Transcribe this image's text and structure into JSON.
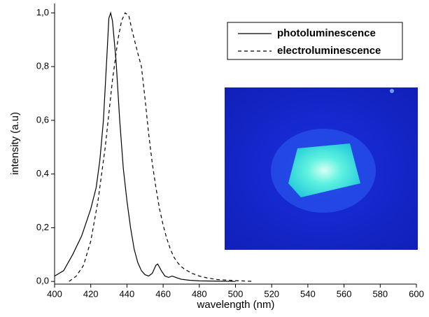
{
  "chart_data": {
    "type": "line",
    "xlabel": "wavelength (nm)",
    "ylabel": "intensity (a.u)",
    "xlim": [
      400,
      600
    ],
    "xticks": [
      400,
      420,
      440,
      460,
      480,
      500,
      520,
      540,
      560,
      580,
      600
    ],
    "ylim": [
      -0.01,
      1.035
    ],
    "yticks": [
      {
        "value": 0,
        "label": "0,0"
      },
      {
        "value": 0.2,
        "label": "0,2"
      },
      {
        "value": 0.4,
        "label": "0,4"
      },
      {
        "value": 0.6,
        "label": "0,6"
      },
      {
        "value": 0.8,
        "label": "0,8"
      },
      {
        "value": 1.0,
        "label": "1,0"
      }
    ],
    "legend": "top-right",
    "series": [
      {
        "name": "photoluminescence",
        "color": "#000000",
        "line_style": "solid",
        "x": [
          400,
          405,
          410,
          415,
          420,
          423,
          425,
          427,
          429,
          430,
          431,
          432,
          434,
          436,
          438,
          440,
          442,
          444,
          446,
          448,
          450,
          452,
          454,
          456,
          457,
          459,
          461,
          463,
          465,
          467,
          470,
          475,
          480,
          490,
          500
        ],
        "values": [
          0.02,
          0.04,
          0.1,
          0.17,
          0.27,
          0.35,
          0.45,
          0.6,
          0.85,
          0.98,
          1.0,
          0.97,
          0.82,
          0.6,
          0.42,
          0.3,
          0.2,
          0.12,
          0.07,
          0.04,
          0.025,
          0.02,
          0.03,
          0.06,
          0.065,
          0.04,
          0.02,
          0.015,
          0.02,
          0.015,
          0.008,
          0.004,
          0.002,
          0.001,
          0
        ]
      },
      {
        "name": "electroluminescence",
        "color": "#000000",
        "line_style": "dashed",
        "x": [
          408,
          412,
          416,
          420,
          424,
          428,
          432,
          435,
          437,
          439,
          441,
          443,
          446,
          448,
          450,
          452,
          454,
          456,
          458,
          460,
          462,
          464,
          466,
          468,
          470,
          472,
          476,
          480,
          485,
          490,
          500,
          510
        ],
        "values": [
          0,
          0.02,
          0.06,
          0.15,
          0.3,
          0.5,
          0.75,
          0.9,
          0.97,
          1.0,
          0.99,
          0.93,
          0.85,
          0.8,
          0.68,
          0.55,
          0.44,
          0.35,
          0.27,
          0.21,
          0.16,
          0.12,
          0.09,
          0.07,
          0.055,
          0.045,
          0.03,
          0.02,
          0.012,
          0.007,
          0.003,
          0
        ]
      }
    ]
  }
}
